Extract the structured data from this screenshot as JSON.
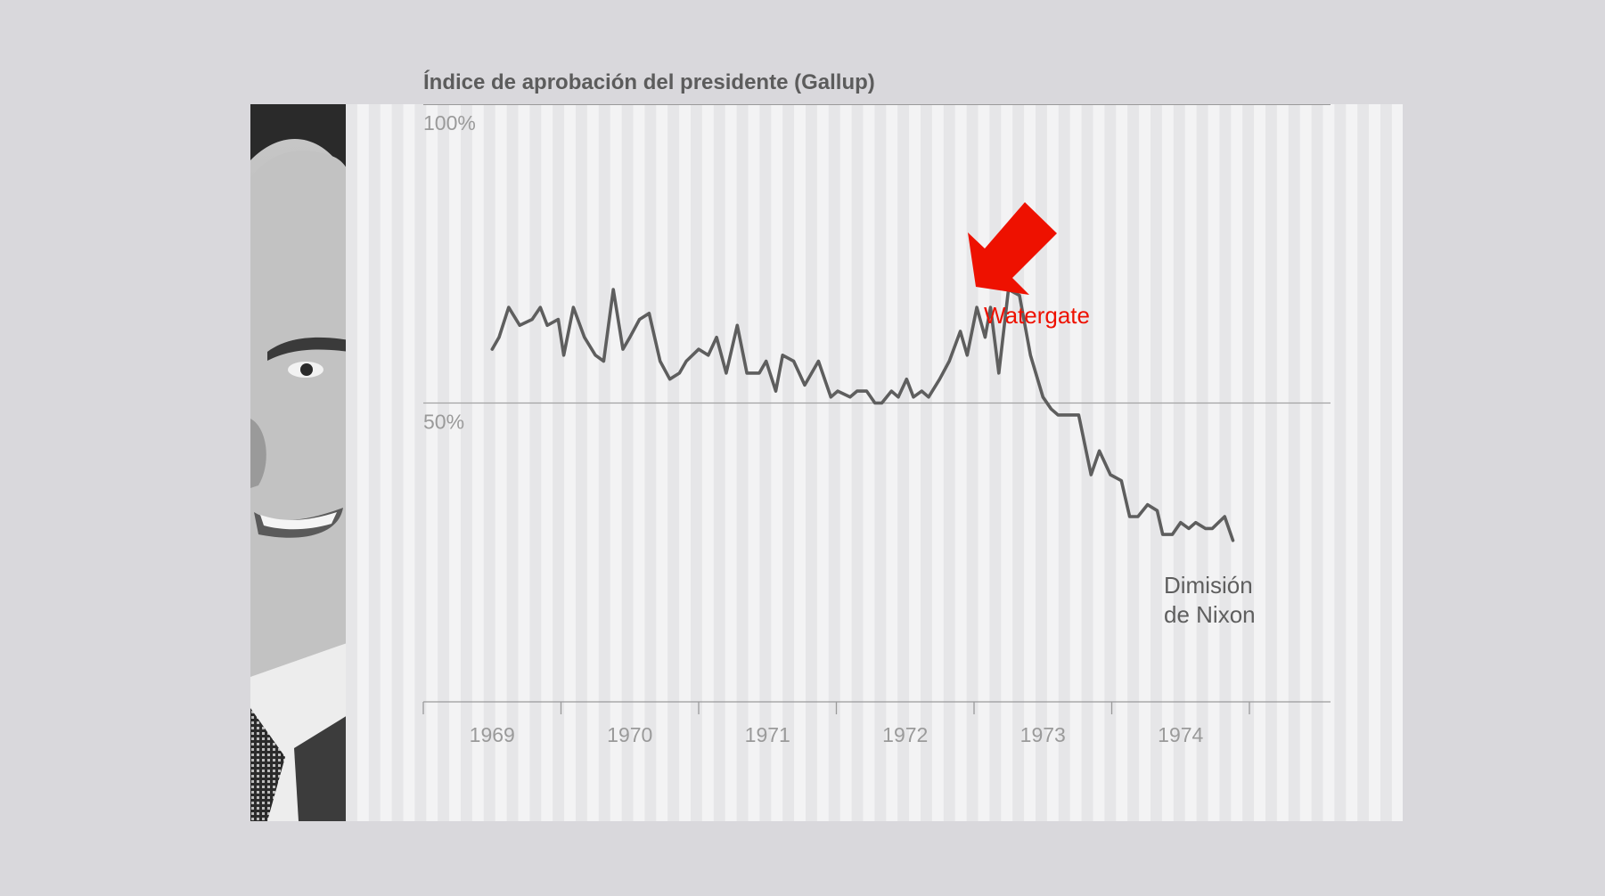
{
  "chart_data": {
    "type": "line",
    "title": "Índice de aprobación del presidente (Gallup)",
    "xlabel": "",
    "ylabel": "",
    "ylim": [
      0,
      100
    ],
    "xlim": [
      1968.5,
      1975.1
    ],
    "y_ticks": [
      {
        "value": 100,
        "label": "100%"
      },
      {
        "value": 50,
        "label": "50%"
      }
    ],
    "x_ticks": [
      1969,
      1970,
      1971,
      1972,
      1973,
      1974
    ],
    "grid": "vertical-stripes",
    "series": [
      {
        "name": "",
        "color": "#5e5e5e",
        "x": [
          1969.0,
          1969.05,
          1969.12,
          1969.2,
          1969.29,
          1969.35,
          1969.4,
          1969.48,
          1969.52,
          1969.59,
          1969.67,
          1969.75,
          1969.81,
          1969.88,
          1969.95,
          1970.0,
          1970.07,
          1970.14,
          1970.22,
          1970.29,
          1970.36,
          1970.41,
          1970.5,
          1970.57,
          1970.63,
          1970.7,
          1970.78,
          1970.85,
          1970.94,
          1970.99,
          1971.06,
          1971.11,
          1971.19,
          1971.27,
          1971.37,
          1971.46,
          1971.51,
          1971.6,
          1971.65,
          1971.72,
          1971.78,
          1971.83,
          1971.9,
          1971.95,
          1972.01,
          1972.06,
          1972.12,
          1972.17,
          1972.25,
          1972.32,
          1972.4,
          1972.45,
          1972.52,
          1972.58,
          1972.62,
          1972.68,
          1972.75,
          1972.83,
          1972.91,
          1973.0,
          1973.06,
          1973.11,
          1973.19,
          1973.26,
          1973.35,
          1973.41,
          1973.49,
          1973.57,
          1973.63,
          1973.69,
          1973.76,
          1973.83,
          1973.87,
          1973.94,
          1974.0,
          1974.06,
          1974.11,
          1974.18,
          1974.23,
          1974.32,
          1974.38
        ],
        "y": [
          59,
          61,
          66,
          63,
          64,
          66,
          63,
          64,
          58,
          66,
          61,
          58,
          57,
          69,
          59,
          61,
          64,
          65,
          57,
          54,
          55,
          57,
          59,
          58,
          61,
          55,
          63,
          55,
          55,
          57,
          52,
          58,
          57,
          53,
          57,
          51,
          52,
          51,
          52,
          52,
          50,
          50,
          52,
          51,
          54,
          51,
          52,
          51,
          54,
          57,
          62,
          58,
          66,
          61,
          66,
          55,
          69,
          68,
          58,
          51,
          49,
          48,
          48,
          48,
          38,
          42,
          38,
          37,
          31,
          31,
          33,
          32,
          28,
          28,
          30,
          29,
          30,
          29,
          29,
          31,
          27
        ]
      }
    ],
    "annotations": [
      {
        "text": "Watergate",
        "color": "#ee1100"
      },
      {
        "text_lines": [
          "Dimisión",
          "de Nixon"
        ],
        "color": "#5e5e5e"
      }
    ]
  },
  "photo": {
    "icon": "nixon-portrait-icon"
  }
}
